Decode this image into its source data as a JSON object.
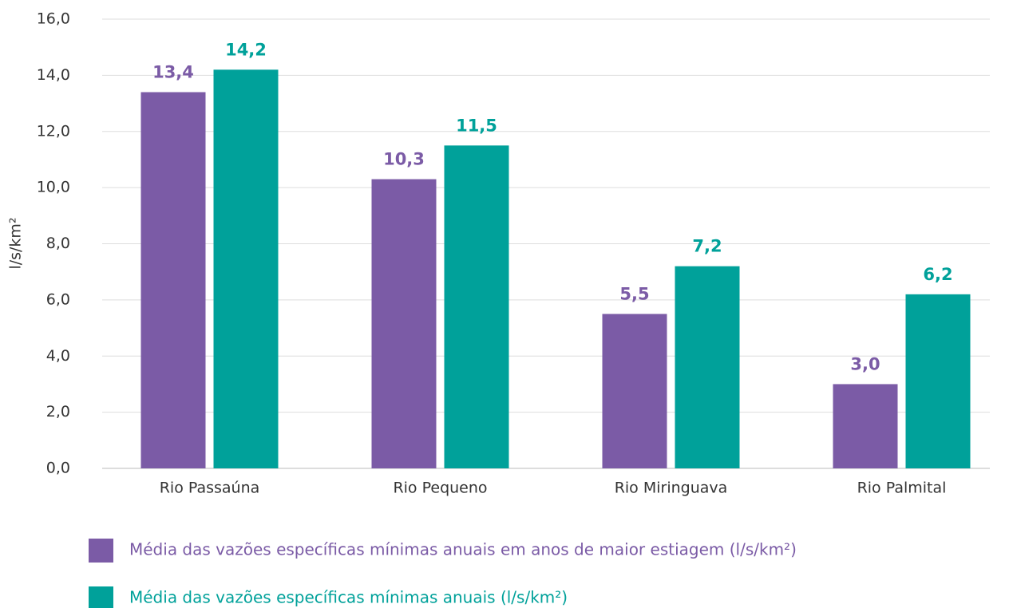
{
  "chart_data": {
    "type": "bar",
    "ylabel": "l/s/km²",
    "categories": [
      "Rio Passaúna",
      "Rio Pequeno",
      "Rio Miringuava",
      "Rio Palmital"
    ],
    "series": [
      {
        "name": "Média das vazões específicas mínimas anuais em anos de maior estiagem (l/s/km²)",
        "color": "#7b5ba6",
        "values": [
          13.4,
          10.3,
          5.5,
          3.0
        ],
        "value_labels": [
          "13,4",
          "10,3",
          "5,5",
          "3,0"
        ]
      },
      {
        "name": "Média das vazões específicas mínimas anuais (l/s/km²)",
        "color": "#00a19a",
        "values": [
          14.2,
          11.5,
          7.2,
          6.2
        ],
        "value_labels": [
          "14,2",
          "11,5",
          "7,2",
          "6,2"
        ]
      }
    ],
    "ylim": [
      0,
      16
    ],
    "yticks": [
      {
        "value": 0,
        "label": "0,0"
      },
      {
        "value": 2,
        "label": "2,0"
      },
      {
        "value": 4,
        "label": "4,0"
      },
      {
        "value": 6,
        "label": "6,0"
      },
      {
        "value": 8,
        "label": "8,0"
      },
      {
        "value": 10,
        "label": "10,0"
      },
      {
        "value": 12,
        "label": "12,0"
      },
      {
        "value": 14,
        "label": "14,0"
      },
      {
        "value": 16,
        "label": "16,0"
      }
    ],
    "grid": true
  }
}
